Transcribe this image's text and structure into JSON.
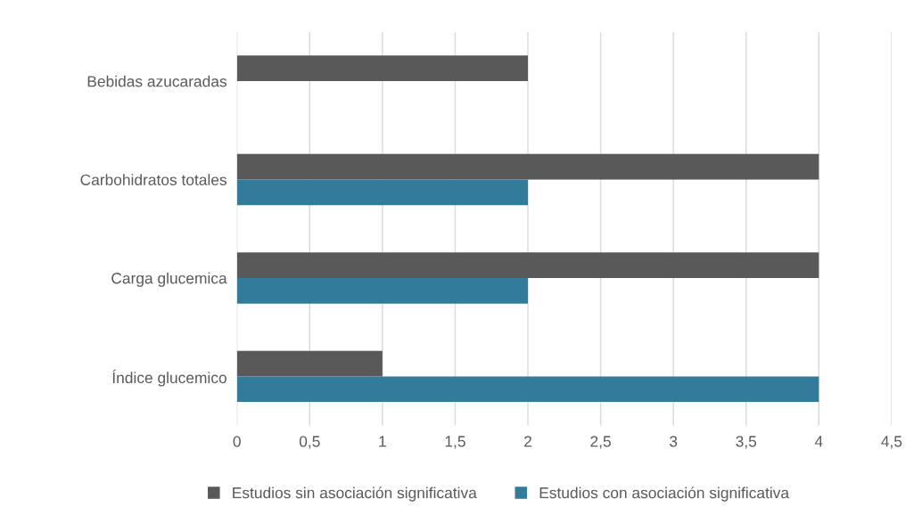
{
  "chart_data": {
    "type": "bar",
    "orientation": "horizontal",
    "categories": [
      "Bebidas azucaradas",
      "Carbohidratos totales",
      "Carga glucemica",
      "Índice glucemico"
    ],
    "series": [
      {
        "name": "Estudios sin asociación significativa",
        "color": "#595959",
        "values": [
          2,
          4,
          4,
          1
        ]
      },
      {
        "name": "Estudios con asociación significativa",
        "color": "#327b9b",
        "values": [
          null,
          2,
          2,
          4
        ]
      }
    ],
    "xlim": [
      0,
      4.5
    ],
    "xticks": [
      0,
      {
        "value": 0.5,
        "label": "0,5"
      },
      1,
      {
        "value": 1.5,
        "label": "1,5"
      },
      2,
      {
        "value": 2.5,
        "label": "2,5"
      },
      3,
      {
        "value": 3.5,
        "label": "3,5"
      },
      4,
      {
        "value": 4.5,
        "label": "4,5"
      }
    ],
    "grid": "x",
    "legend": "bottom"
  }
}
